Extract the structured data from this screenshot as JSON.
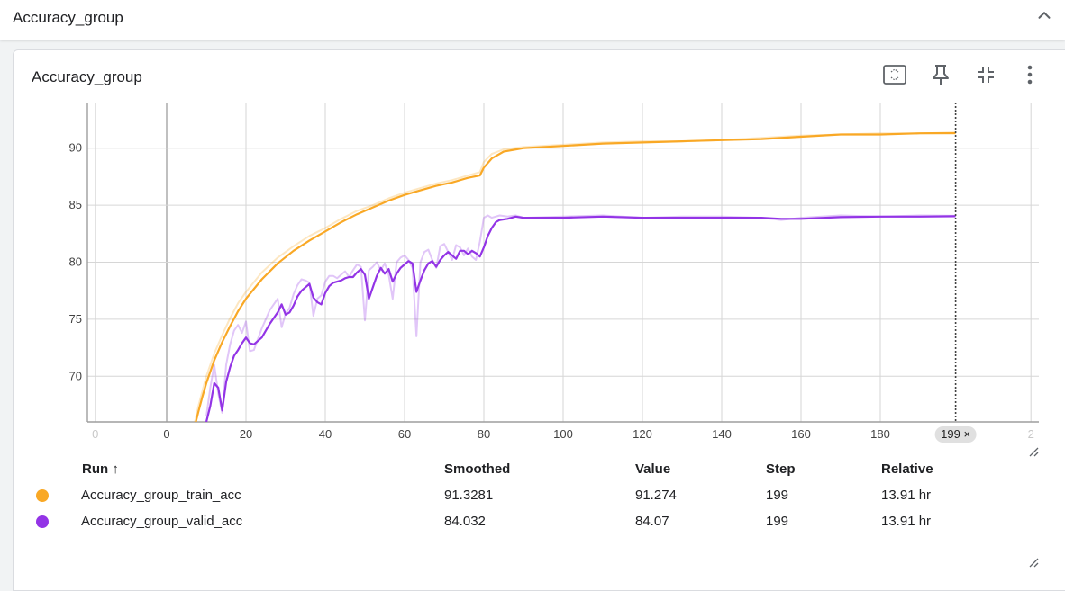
{
  "section": {
    "title": "Accuracy_group"
  },
  "card": {
    "title": "Accuracy_group"
  },
  "icons": {
    "collapse": "chevron-up-icon",
    "fit_domain": "fit-to-data-icon",
    "pin": "pin-icon",
    "collapse_card": "minimize-icon",
    "more": "more-vert-icon"
  },
  "colors": {
    "train": "#f9a825",
    "valid": "#9334e6",
    "grid": "#d6d6d6"
  },
  "chart_data": {
    "type": "line",
    "title": "Accuracy_group",
    "xlabel": "",
    "ylabel": "",
    "xlim": [
      -20,
      220
    ],
    "ylim": [
      66,
      94
    ],
    "x_ticks": [
      "0",
      "0",
      "20",
      "40",
      "60",
      "80",
      "100",
      "120",
      "140",
      "160",
      "180",
      "2"
    ],
    "x_tick_values": [
      -18,
      0,
      20,
      40,
      60,
      80,
      100,
      120,
      140,
      160,
      180,
      218
    ],
    "y_ticks": [
      "70",
      "75",
      "80",
      "85",
      "90"
    ],
    "y_tick_values": [
      70,
      75,
      80,
      85,
      90
    ],
    "hover_step": 199,
    "hover_label": "199 ×",
    "series": [
      {
        "name": "Accuracy_group_train_acc",
        "smoothed_points": [
          [
            7,
            65.5
          ],
          [
            8,
            66.9
          ],
          [
            9,
            68.2
          ],
          [
            10,
            69.4
          ],
          [
            12,
            71.4
          ],
          [
            14,
            73.0
          ],
          [
            16,
            74.4
          ],
          [
            18,
            75.7
          ],
          [
            20,
            76.8
          ],
          [
            24,
            78.5
          ],
          [
            28,
            79.9
          ],
          [
            32,
            81.0
          ],
          [
            36,
            81.9
          ],
          [
            40,
            82.7
          ],
          [
            44,
            83.5
          ],
          [
            48,
            84.2
          ],
          [
            52,
            84.8
          ],
          [
            56,
            85.4
          ],
          [
            60,
            85.9
          ],
          [
            64,
            86.3
          ],
          [
            68,
            86.7
          ],
          [
            72,
            87.0
          ],
          [
            76,
            87.4
          ],
          [
            79,
            87.6
          ],
          [
            80,
            88.3
          ],
          [
            82,
            89.1
          ],
          [
            85,
            89.7
          ],
          [
            90,
            90.0
          ],
          [
            100,
            90.2
          ],
          [
            110,
            90.4
          ],
          [
            120,
            90.5
          ],
          [
            130,
            90.6
          ],
          [
            140,
            90.7
          ],
          [
            150,
            90.8
          ],
          [
            160,
            91.0
          ],
          [
            170,
            91.2
          ],
          [
            180,
            91.2
          ],
          [
            190,
            91.3
          ],
          [
            199,
            91.33
          ]
        ],
        "raw_points": [
          [
            7,
            65.8
          ],
          [
            8,
            67.4
          ],
          [
            9,
            68.7
          ],
          [
            10,
            70.0
          ],
          [
            12,
            72.0
          ],
          [
            14,
            73.6
          ],
          [
            16,
            75.1
          ],
          [
            18,
            76.4
          ],
          [
            20,
            77.4
          ],
          [
            24,
            79.1
          ],
          [
            28,
            80.4
          ],
          [
            32,
            81.4
          ],
          [
            36,
            82.3
          ],
          [
            40,
            83.0
          ],
          [
            44,
            83.8
          ],
          [
            48,
            84.5
          ],
          [
            52,
            85.0
          ],
          [
            56,
            85.6
          ],
          [
            60,
            86.1
          ],
          [
            64,
            86.5
          ],
          [
            68,
            86.9
          ],
          [
            72,
            87.2
          ],
          [
            76,
            87.6
          ],
          [
            79,
            87.9
          ],
          [
            80,
            88.8
          ],
          [
            82,
            89.5
          ],
          [
            85,
            89.9
          ],
          [
            90,
            90.1
          ],
          [
            100,
            90.3
          ],
          [
            110,
            90.5
          ],
          [
            120,
            90.6
          ],
          [
            130,
            90.6
          ],
          [
            140,
            90.7
          ],
          [
            150,
            90.9
          ],
          [
            160,
            91.1
          ],
          [
            170,
            91.2
          ],
          [
            180,
            91.3
          ],
          [
            190,
            91.3
          ],
          [
            199,
            91.27
          ]
        ],
        "smoothed": "91.3281",
        "value": "91.274",
        "step": "199",
        "relative": "13.91 hr"
      },
      {
        "name": "Accuracy_group_valid_acc",
        "smoothed_points": [
          [
            10,
            66.0
          ],
          [
            11,
            67.4
          ],
          [
            12,
            69.4
          ],
          [
            13,
            69.0
          ],
          [
            14,
            67.0
          ],
          [
            15,
            69.5
          ],
          [
            16,
            70.8
          ],
          [
            17,
            71.8
          ],
          [
            18,
            72.3
          ],
          [
            19,
            72.9
          ],
          [
            20,
            73.4
          ],
          [
            21,
            72.9
          ],
          [
            22,
            72.8
          ],
          [
            24,
            73.4
          ],
          [
            26,
            74.6
          ],
          [
            28,
            75.6
          ],
          [
            29,
            76.3
          ],
          [
            30,
            75.4
          ],
          [
            31,
            75.6
          ],
          [
            32,
            76.2
          ],
          [
            33,
            77.0
          ],
          [
            34,
            77.5
          ],
          [
            35,
            77.8
          ],
          [
            36,
            78.1
          ],
          [
            37,
            76.9
          ],
          [
            38,
            76.5
          ],
          [
            39,
            76.3
          ],
          [
            40,
            77.3
          ],
          [
            41,
            77.9
          ],
          [
            42,
            78.2
          ],
          [
            43,
            78.3
          ],
          [
            44,
            78.4
          ],
          [
            45,
            78.6
          ],
          [
            46,
            78.7
          ],
          [
            47,
            78.7
          ],
          [
            48,
            79.1
          ],
          [
            49,
            79.4
          ],
          [
            50,
            78.9
          ],
          [
            51,
            76.8
          ],
          [
            52,
            77.8
          ],
          [
            53,
            78.8
          ],
          [
            54,
            79.5
          ],
          [
            55,
            79.0
          ],
          [
            56,
            79.4
          ],
          [
            57,
            78.3
          ],
          [
            58,
            79.0
          ],
          [
            59,
            79.5
          ],
          [
            60,
            79.8
          ],
          [
            61,
            80.1
          ],
          [
            62,
            79.9
          ],
          [
            63,
            77.4
          ],
          [
            64,
            78.4
          ],
          [
            65,
            79.3
          ],
          [
            66,
            79.9
          ],
          [
            67,
            80.1
          ],
          [
            68,
            79.6
          ],
          [
            69,
            80.2
          ],
          [
            70,
            80.6
          ],
          [
            71,
            80.9
          ],
          [
            72,
            80.6
          ],
          [
            73,
            80.3
          ],
          [
            74,
            81.0
          ],
          [
            75,
            81.0
          ],
          [
            76,
            80.7
          ],
          [
            77,
            81.0
          ],
          [
            78,
            80.8
          ],
          [
            79,
            80.5
          ],
          [
            80,
            81.3
          ],
          [
            81,
            82.3
          ],
          [
            82,
            83.0
          ],
          [
            83,
            83.5
          ],
          [
            84,
            83.7
          ],
          [
            86,
            83.8
          ],
          [
            88,
            84.0
          ],
          [
            90,
            83.9
          ],
          [
            100,
            83.9
          ],
          [
            110,
            84.0
          ],
          [
            120,
            83.9
          ],
          [
            130,
            83.9
          ],
          [
            140,
            83.9
          ],
          [
            150,
            83.9
          ],
          [
            155,
            83.8
          ],
          [
            160,
            83.8
          ],
          [
            170,
            83.95
          ],
          [
            180,
            84.0
          ],
          [
            190,
            84.0
          ],
          [
            199,
            84.03
          ]
        ],
        "raw_points": [
          [
            10,
            66.5
          ],
          [
            11,
            69.0
          ],
          [
            12,
            71.0
          ],
          [
            13,
            68.5
          ],
          [
            14,
            66.8
          ],
          [
            15,
            71.0
          ],
          [
            16,
            72.8
          ],
          [
            17,
            74.0
          ],
          [
            18,
            74.5
          ],
          [
            19,
            73.8
          ],
          [
            20,
            74.8
          ],
          [
            21,
            72.2
          ],
          [
            22,
            72.3
          ],
          [
            24,
            74.2
          ],
          [
            26,
            75.8
          ],
          [
            28,
            76.8
          ],
          [
            29,
            74.3
          ],
          [
            30,
            75.5
          ],
          [
            31,
            76.0
          ],
          [
            32,
            77.2
          ],
          [
            33,
            78.0
          ],
          [
            34,
            78.5
          ],
          [
            35,
            78.4
          ],
          [
            36,
            78.2
          ],
          [
            37,
            75.3
          ],
          [
            38,
            76.8
          ],
          [
            39,
            77.1
          ],
          [
            40,
            78.3
          ],
          [
            41,
            78.8
          ],
          [
            42,
            78.8
          ],
          [
            43,
            78.6
          ],
          [
            44,
            78.9
          ],
          [
            45,
            79.2
          ],
          [
            46,
            78.7
          ],
          [
            47,
            79.3
          ],
          [
            48,
            79.8
          ],
          [
            49,
            79.6
          ],
          [
            50,
            74.9
          ],
          [
            51,
            79.3
          ],
          [
            52,
            79.6
          ],
          [
            53,
            80.0
          ],
          [
            54,
            79.3
          ],
          [
            55,
            79.9
          ],
          [
            56,
            78.9
          ],
          [
            57,
            76.8
          ],
          [
            58,
            80.0
          ],
          [
            59,
            80.4
          ],
          [
            60,
            80.6
          ],
          [
            61,
            80.2
          ],
          [
            62,
            79.5
          ],
          [
            63,
            73.5
          ],
          [
            64,
            80.0
          ],
          [
            65,
            80.9
          ],
          [
            66,
            81.1
          ],
          [
            67,
            80.2
          ],
          [
            68,
            79.5
          ],
          [
            69,
            81.4
          ],
          [
            70,
            81.6
          ],
          [
            71,
            80.9
          ],
          [
            72,
            80.2
          ],
          [
            73,
            81.5
          ],
          [
            74,
            81.3
          ],
          [
            75,
            80.6
          ],
          [
            76,
            81.2
          ],
          [
            77,
            80.5
          ],
          [
            78,
            80.2
          ],
          [
            79,
            81.8
          ],
          [
            80,
            83.9
          ],
          [
            81,
            84.1
          ],
          [
            82,
            83.9
          ],
          [
            84,
            84.1
          ],
          [
            86,
            84.0
          ],
          [
            88,
            84.1
          ],
          [
            90,
            83.9
          ],
          [
            100,
            84.0
          ],
          [
            110,
            84.1
          ],
          [
            120,
            83.9
          ],
          [
            130,
            84.0
          ],
          [
            140,
            84.0
          ],
          [
            150,
            83.9
          ],
          [
            155,
            83.7
          ],
          [
            160,
            83.9
          ],
          [
            170,
            84.1
          ],
          [
            180,
            84.0
          ],
          [
            190,
            84.1
          ],
          [
            199,
            84.07
          ]
        ],
        "smoothed": "84.032",
        "value": "84.07",
        "step": "199",
        "relative": "13.91 hr"
      }
    ]
  },
  "table": {
    "headers": {
      "run": "Run ↑",
      "smoothed": "Smoothed",
      "value": "Value",
      "step": "Step",
      "relative": "Relative"
    }
  }
}
